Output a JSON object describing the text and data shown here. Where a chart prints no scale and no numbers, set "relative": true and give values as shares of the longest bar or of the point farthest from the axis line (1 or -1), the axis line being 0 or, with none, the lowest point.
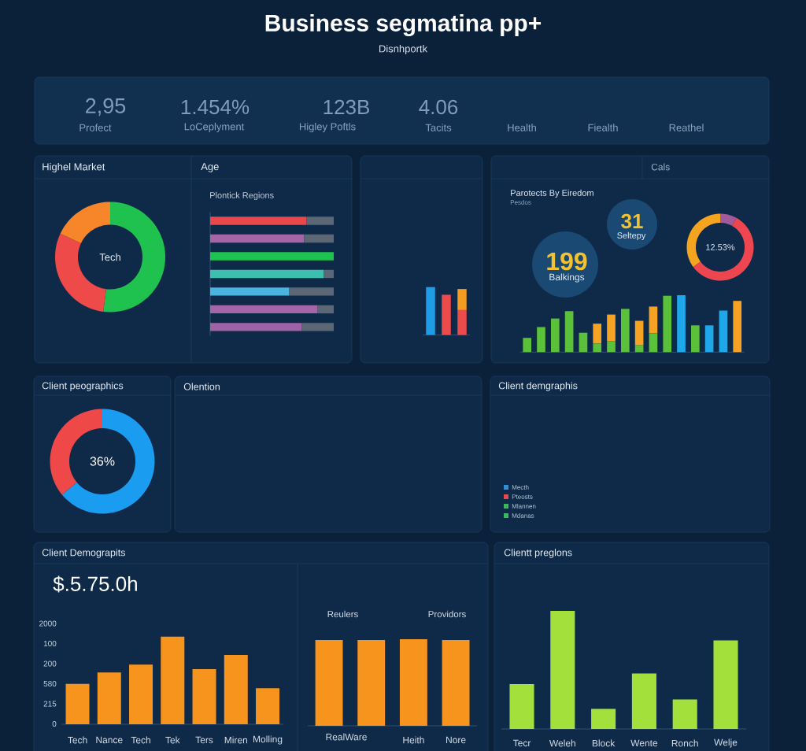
{
  "chart_data": [
    {
      "type": "other",
      "title": "Business segmatina pp+",
      "subtitle": "Disnhportk",
      "annotations": [
        "2,95",
        "Profect",
        "1.454%",
        "LoCeplyment",
        "123B",
        "Higley Poftls",
        "4.06",
        "Tacits",
        "Health",
        "Fiealth",
        "Reathel"
      ]
    },
    {
      "type": "donut",
      "title": "Highel Market",
      "categories": [
        null,
        null,
        null
      ],
      "values": [
        52,
        30,
        18
      ],
      "colors": [
        "#1fc24e",
        "#ee4a4a",
        "#f7862a"
      ],
      "annotations": [
        "Tech"
      ]
    },
    {
      "type": "bar",
      "title": "Age",
      "subtitle": "Plontick Regions",
      "orientation": "horizontal",
      "stacked": true,
      "relative": true,
      "categories": [
        null,
        null,
        null,
        null,
        null,
        null,
        null
      ],
      "series": [
        {
          "colors": [
            "#e8474b",
            "#a466a8",
            "#1dc24f",
            "#3dbfb0",
            "#4ab3e0",
            "#a466a8",
            "#9e62a6"
          ],
          "values": [
            0.78,
            0.76,
            1.0,
            0.92,
            0.64,
            0.87,
            0.74
          ]
        },
        {
          "color": "#5c6775",
          "values": [
            0.22,
            0.24,
            null,
            0.08,
            0.36,
            0.13,
            0.26
          ]
        }
      ]
    },
    {
      "type": "bar",
      "stacked": true,
      "relative": true,
      "categories": [
        null,
        null,
        null
      ],
      "series": [
        {
          "colors": [
            "#1e9de6",
            "#ec4b4b",
            "#ec4b4b"
          ],
          "values": [
            1.0,
            0.84,
            0.52
          ]
        },
        {
          "color": "#f39c1f",
          "values": [
            null,
            null,
            0.44
          ]
        }
      ]
    },
    {
      "type": "other",
      "title": "Cals",
      "subtitle": "Parotects By Eiredom",
      "annotations": [
        "Pesdos",
        "31",
        "Seltepy",
        "199",
        "Balkings"
      ]
    },
    {
      "type": "donut",
      "categories": [
        null,
        null,
        null
      ],
      "values": [
        8,
        57,
        35
      ],
      "colors": [
        "#a35a9a",
        "#ee4650",
        "#f4a41f"
      ],
      "annotations": [
        "12.53%"
      ]
    },
    {
      "type": "bar",
      "stacked": true,
      "relative": true,
      "categories": [
        null,
        null,
        null,
        null,
        null,
        null,
        null,
        null,
        null,
        null,
        null,
        null,
        null,
        null,
        null,
        null
      ],
      "series": [
        {
          "color": "#5cc13a",
          "values": [
            0.25,
            0.44,
            0.59,
            0.72,
            0.34,
            0.15,
            0.19,
            0.76,
            0.12,
            0.33,
            0.99,
            null,
            0.47,
            null,
            null,
            null
          ]
        },
        {
          "color": "#f6a323",
          "values": [
            null,
            null,
            null,
            null,
            null,
            0.35,
            0.47,
            null,
            0.43,
            0.47,
            null,
            null,
            null,
            null,
            null,
            0.9
          ]
        },
        {
          "color": "#1ea8ea",
          "values": [
            null,
            null,
            null,
            null,
            null,
            null,
            null,
            null,
            null,
            null,
            null,
            1.0,
            null,
            0.47,
            0.73,
            null
          ]
        }
      ]
    },
    {
      "type": "donut",
      "title": "Client peographics",
      "categories": [
        null,
        null
      ],
      "values": [
        64,
        36
      ],
      "colors": [
        "#1a9cf0",
        "#ee4848"
      ],
      "annotations": [
        "36%"
      ]
    },
    {
      "type": "other",
      "title": "Olention"
    },
    {
      "type": "other",
      "title": "Client demgraphis",
      "legend": "bottom left",
      "series": [
        {
          "name": "Mecth",
          "color": "#2f8fd8"
        },
        {
          "name": "Pteosts",
          "color": "#e8474b"
        },
        {
          "name": "Mlannen",
          "color": "#3cb95a"
        },
        {
          "name": "Mdanas",
          "color": "#3cb95a"
        }
      ]
    },
    {
      "type": "bar",
      "title": "Client Demograpits",
      "relative": true,
      "categories": [
        "Tech",
        "Nance",
        "Tech",
        "Tek",
        "Ters",
        "Miren",
        "Molling"
      ],
      "values": [
        0.46,
        0.59,
        0.68,
        1.0,
        0.63,
        0.79,
        0.41
      ],
      "color": "#f7941d",
      "annotations": [
        "$.5.75.0h",
        "2000",
        "100",
        "200",
        "580",
        "215",
        "0"
      ]
    },
    {
      "type": "bar",
      "relative": true,
      "categories": [
        null,
        null,
        "Heith",
        "Nore"
      ],
      "values": [
        0.99,
        0.99,
        1.0,
        0.99
      ],
      "color": "#f7941d",
      "annotations": [
        "Reulers",
        "Providors",
        "RealWare"
      ]
    },
    {
      "type": "bar",
      "title": "Clientt preglons",
      "relative": true,
      "categories": [
        "Tecr",
        "Weleh",
        "Block",
        "Wente",
        "Ronch",
        "Welje"
      ],
      "values": [
        0.38,
        1.0,
        0.17,
        0.47,
        0.25,
        0.75
      ],
      "color": "#a3e03b"
    }
  ]
}
